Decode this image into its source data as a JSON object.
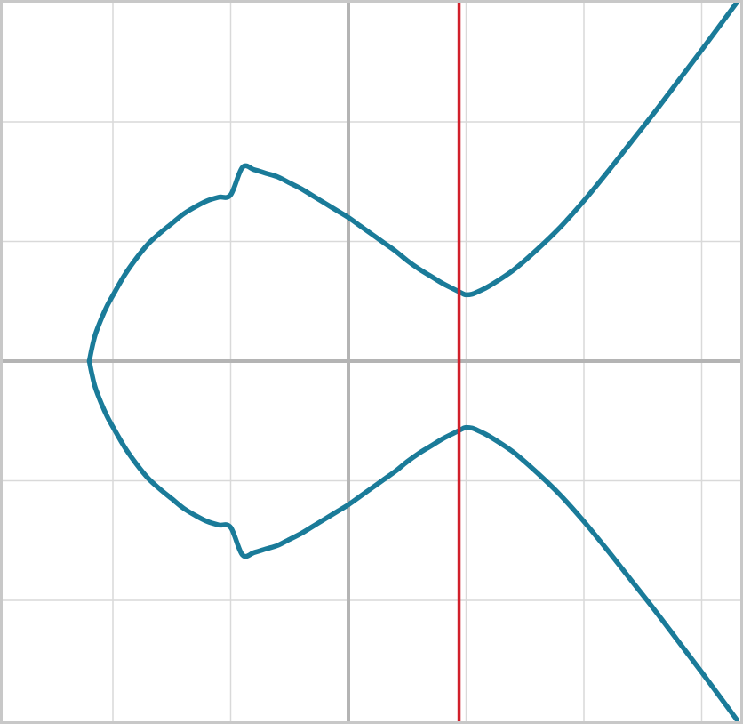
{
  "chart_data": {
    "type": "line",
    "title": "",
    "xlabel": "",
    "ylabel": "",
    "xlim": [
      -3,
      3.3
    ],
    "ylim": [
      -3,
      3
    ],
    "grid": true,
    "x_gridlines": [
      -2,
      -1,
      0,
      1,
      2,
      3
    ],
    "y_gridlines": [
      -2,
      -1,
      0,
      1,
      2
    ],
    "series": [
      {
        "name": "curve-upper-loop",
        "color": "#1a7b99",
        "x": [
          0.98,
          0.9,
          0.8,
          0.7,
          0.6,
          0.5,
          0.4,
          0.3,
          0.2,
          0.1,
          0.0,
          -0.1,
          -0.2,
          -0.3,
          -0.4,
          -0.5,
          -0.6,
          -0.7,
          -0.8,
          -0.9,
          -1.0,
          -1.1,
          -1.2,
          -1.3,
          -1.4,
          -1.5,
          -1.6,
          -1.7,
          -1.8,
          -1.9,
          -2.0,
          -2.05,
          -2.1,
          -2.15,
          -2.18,
          -2.2
        ],
        "y": [
          0.56,
          0.6,
          0.65,
          0.71,
          0.77,
          0.84,
          0.92,
          0.99,
          1.06,
          1.13,
          1.2,
          1.26,
          1.32,
          1.38,
          1.44,
          1.49,
          1.54,
          1.57,
          1.6,
          1.62,
          1.39,
          1.37,
          1.34,
          1.29,
          1.23,
          1.15,
          1.07,
          0.98,
          0.86,
          0.72,
          0.55,
          0.46,
          0.35,
          0.22,
          0.1,
          0.0
        ]
      },
      {
        "name": "curve-lower-loop",
        "color": "#1a7b99",
        "x": [
          0.98,
          0.9,
          0.8,
          0.7,
          0.6,
          0.5,
          0.4,
          0.3,
          0.2,
          0.1,
          0.0,
          -0.1,
          -0.2,
          -0.3,
          -0.4,
          -0.5,
          -0.6,
          -0.7,
          -0.8,
          -0.9,
          -1.0,
          -1.1,
          -1.2,
          -1.3,
          -1.4,
          -1.5,
          -1.6,
          -1.7,
          -1.8,
          -1.9,
          -2.0,
          -2.05,
          -2.1,
          -2.15,
          -2.18,
          -2.2
        ],
        "y": [
          -0.56,
          -0.6,
          -0.65,
          -0.71,
          -0.77,
          -0.84,
          -0.92,
          -0.99,
          -1.06,
          -1.13,
          -1.2,
          -1.26,
          -1.32,
          -1.38,
          -1.44,
          -1.49,
          -1.54,
          -1.57,
          -1.6,
          -1.62,
          -1.39,
          -1.37,
          -1.34,
          -1.29,
          -1.23,
          -1.15,
          -1.07,
          -0.98,
          -0.86,
          -0.72,
          -0.55,
          -0.46,
          -0.35,
          -0.22,
          -0.1,
          0.0
        ]
      },
      {
        "name": "curve-right-branch",
        "color": "#1a7b99",
        "x": [
          3.3,
          3.0,
          2.8,
          2.6,
          2.4,
          2.2,
          2.0,
          1.8,
          1.6,
          1.4,
          1.2,
          1.1,
          1.05,
          1.0,
          0.98
        ],
        "y": [
          3.0,
          2.6,
          2.34,
          2.08,
          1.83,
          1.58,
          1.34,
          1.12,
          0.93,
          0.76,
          0.63,
          0.58,
          0.56,
          0.555,
          0.56
        ]
      },
      {
        "name": "curve-right-branch-lower",
        "color": "#1a7b99",
        "x": [
          0.98,
          1.0,
          1.05,
          1.1,
          1.2,
          1.4,
          1.6,
          1.8,
          2.0,
          2.2,
          2.4,
          2.6,
          2.8,
          3.0,
          3.3
        ],
        "y": [
          -0.56,
          -0.555,
          -0.56,
          -0.58,
          -0.63,
          -0.76,
          -0.93,
          -1.12,
          -1.34,
          -1.58,
          -1.83,
          -2.08,
          -2.34,
          -2.6,
          -3.0
        ]
      }
    ],
    "vertical_line": {
      "x": 0.94,
      "color": "#d11f2a"
    }
  }
}
